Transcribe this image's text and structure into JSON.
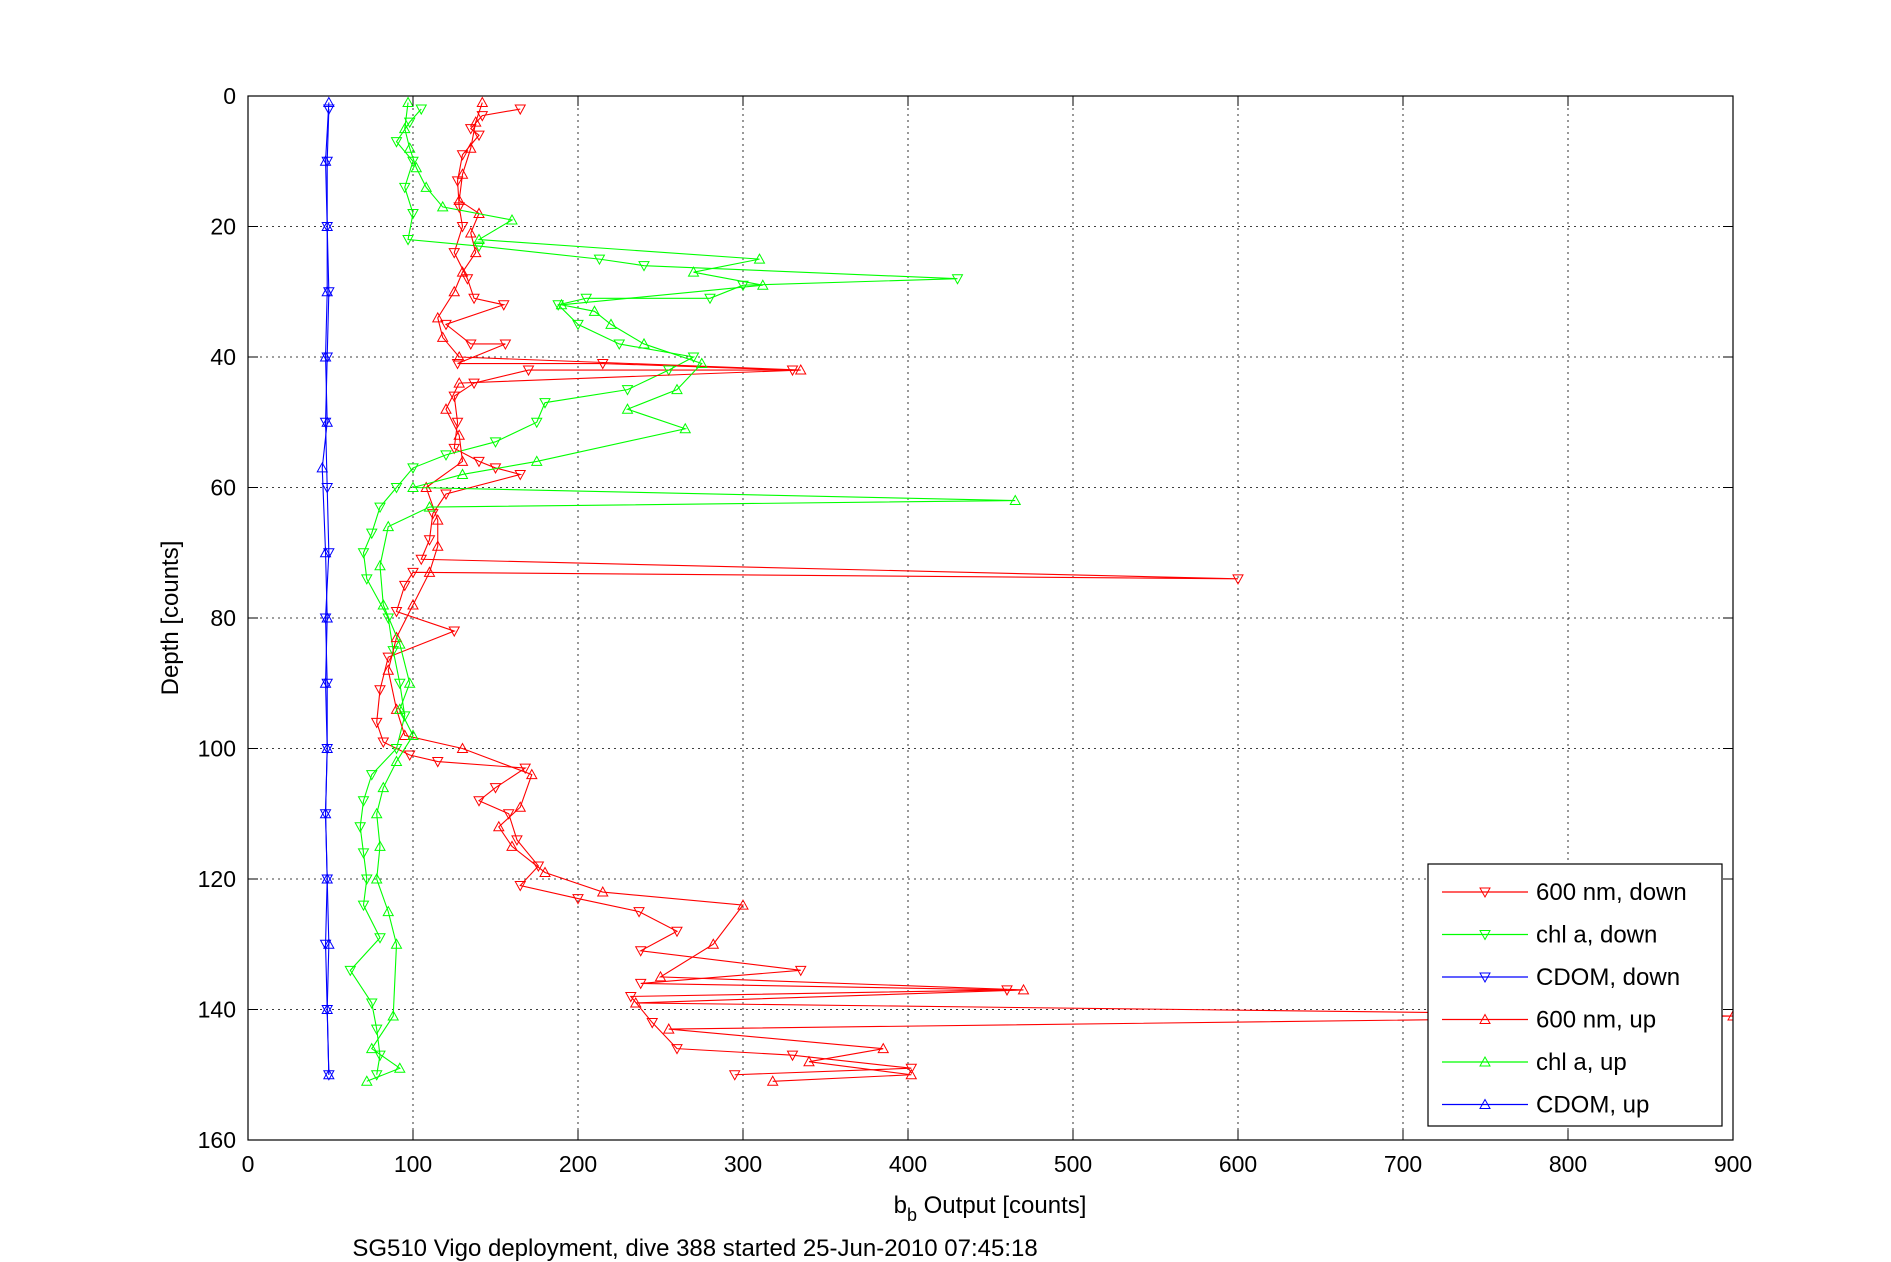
{
  "chart_data": {
    "type": "line",
    "xlabel": "b_b Output [counts]",
    "xlabel_main": "b",
    "xlabel_sub": "b",
    "xlabel_rest": " Output [counts]",
    "ylabel": "Depth [counts]",
    "caption": "SG510 Vigo deployment, dive 388 started 25-Jun-2010 07:45:18",
    "xlim": [
      0,
      900
    ],
    "ylim": [
      0,
      160
    ],
    "y_reversed": true,
    "grid": true,
    "legend_position": "bottom-right",
    "xticks": [
      "0",
      "100",
      "200",
      "300",
      "400",
      "500",
      "600",
      "700",
      "800",
      "900"
    ],
    "yticks": [
      "0",
      "20",
      "40",
      "60",
      "80",
      "100",
      "120",
      "140",
      "160"
    ],
    "series": [
      {
        "name": "600 nm, down",
        "color": "#ff0000",
        "marker": "triangle-down",
        "points": [
          [
            165,
            2
          ],
          [
            142,
            3
          ],
          [
            135,
            5
          ],
          [
            140,
            6
          ],
          [
            130,
            9
          ],
          [
            127,
            13
          ],
          [
            128,
            17
          ],
          [
            130,
            20
          ],
          [
            125,
            24
          ],
          [
            133,
            28
          ],
          [
            137,
            31
          ],
          [
            155,
            32
          ],
          [
            120,
            35
          ],
          [
            135,
            38
          ],
          [
            156,
            38
          ],
          [
            127,
            41
          ],
          [
            215,
            41
          ],
          [
            330,
            42
          ],
          [
            170,
            42
          ],
          [
            137,
            44
          ],
          [
            125,
            46
          ],
          [
            127,
            50
          ],
          [
            125,
            54
          ],
          [
            140,
            56
          ],
          [
            150,
            57
          ],
          [
            165,
            58
          ],
          [
            120,
            61
          ],
          [
            112,
            64
          ],
          [
            110,
            68
          ],
          [
            105,
            71
          ],
          [
            600,
            74
          ],
          [
            100,
            73
          ],
          [
            95,
            75
          ],
          [
            90,
            79
          ],
          [
            125,
            82
          ],
          [
            85,
            86
          ],
          [
            80,
            91
          ],
          [
            78,
            96
          ],
          [
            82,
            99
          ],
          [
            98,
            101
          ],
          [
            115,
            102
          ],
          [
            168,
            103
          ],
          [
            150,
            106
          ],
          [
            140,
            108
          ],
          [
            158,
            110
          ],
          [
            163,
            114
          ],
          [
            176,
            118
          ],
          [
            165,
            121
          ],
          [
            200,
            123
          ],
          [
            237,
            125
          ],
          [
            260,
            128
          ],
          [
            238,
            131
          ],
          [
            335,
            134
          ],
          [
            238,
            136
          ],
          [
            460,
            137
          ],
          [
            232,
            138
          ],
          [
            245,
            142
          ],
          [
            260,
            146
          ],
          [
            330,
            147
          ],
          [
            402,
            149
          ],
          [
            295,
            150
          ]
        ]
      },
      {
        "name": "chl a, down",
        "color": "#00ff00",
        "marker": "triangle-down",
        "points": [
          [
            105,
            2
          ],
          [
            98,
            4
          ],
          [
            90,
            7
          ],
          [
            100,
            10
          ],
          [
            95,
            14
          ],
          [
            100,
            18
          ],
          [
            97,
            22
          ],
          [
            140,
            23
          ],
          [
            213,
            25
          ],
          [
            240,
            26
          ],
          [
            430,
            28
          ],
          [
            300,
            29
          ],
          [
            280,
            31
          ],
          [
            205,
            31
          ],
          [
            188,
            32
          ],
          [
            200,
            35
          ],
          [
            225,
            38
          ],
          [
            270,
            40
          ],
          [
            255,
            42
          ],
          [
            230,
            45
          ],
          [
            180,
            47
          ],
          [
            175,
            50
          ],
          [
            150,
            53
          ],
          [
            120,
            55
          ],
          [
            100,
            57
          ],
          [
            90,
            60
          ],
          [
            80,
            63
          ],
          [
            75,
            67
          ],
          [
            70,
            70
          ],
          [
            72,
            74
          ],
          [
            85,
            80
          ],
          [
            88,
            85
          ],
          [
            92,
            90
          ],
          [
            95,
            95
          ],
          [
            90,
            100
          ],
          [
            75,
            104
          ],
          [
            70,
            108
          ],
          [
            68,
            112
          ],
          [
            70,
            116
          ],
          [
            72,
            120
          ],
          [
            70,
            124
          ],
          [
            80,
            129
          ],
          [
            62,
            134
          ],
          [
            75,
            139
          ],
          [
            78,
            143
          ],
          [
            80,
            147
          ],
          [
            78,
            150
          ]
        ]
      },
      {
        "name": "CDOM, down",
        "color": "#0000ff",
        "marker": "triangle-down",
        "points": [
          [
            49,
            2
          ],
          [
            48,
            10
          ],
          [
            48,
            20
          ],
          [
            49,
            30
          ],
          [
            48,
            40
          ],
          [
            47,
            50
          ],
          [
            48,
            60
          ],
          [
            49,
            70
          ],
          [
            47,
            80
          ],
          [
            48,
            90
          ],
          [
            48,
            100
          ],
          [
            47,
            110
          ],
          [
            48,
            120
          ],
          [
            47,
            130
          ],
          [
            48,
            140
          ],
          [
            49,
            150
          ]
        ]
      },
      {
        "name": "600 nm, up",
        "color": "#ff0000",
        "marker": "triangle-up",
        "points": [
          [
            318,
            151
          ],
          [
            402,
            150
          ],
          [
            340,
            148
          ],
          [
            385,
            146
          ],
          [
            255,
            143
          ],
          [
            900,
            141
          ],
          [
            235,
            139
          ],
          [
            470,
            137
          ],
          [
            250,
            135
          ],
          [
            282,
            130
          ],
          [
            300,
            124
          ],
          [
            215,
            122
          ],
          [
            180,
            119
          ],
          [
            160,
            115
          ],
          [
            152,
            112
          ],
          [
            165,
            109
          ],
          [
            172,
            104
          ],
          [
            130,
            100
          ],
          [
            95,
            98
          ],
          [
            90,
            94
          ],
          [
            85,
            88
          ],
          [
            90,
            83
          ],
          [
            100,
            78
          ],
          [
            110,
            73
          ],
          [
            115,
            69
          ],
          [
            115,
            65
          ],
          [
            108,
            60
          ],
          [
            130,
            56
          ],
          [
            128,
            52
          ],
          [
            120,
            48
          ],
          [
            128,
            44
          ],
          [
            335,
            42
          ],
          [
            128,
            40
          ],
          [
            118,
            37
          ],
          [
            115,
            34
          ],
          [
            125,
            30
          ],
          [
            130,
            27
          ],
          [
            138,
            24
          ],
          [
            135,
            21
          ],
          [
            140,
            18
          ],
          [
            128,
            16
          ],
          [
            130,
            12
          ],
          [
            135,
            8
          ],
          [
            138,
            4
          ],
          [
            142,
            1
          ]
        ]
      },
      {
        "name": "chl a, up",
        "color": "#00ff00",
        "marker": "triangle-up",
        "points": [
          [
            72,
            151
          ],
          [
            92,
            149
          ],
          [
            75,
            146
          ],
          [
            88,
            141
          ],
          [
            90,
            130
          ],
          [
            85,
            125
          ],
          [
            78,
            120
          ],
          [
            80,
            115
          ],
          [
            78,
            110
          ],
          [
            82,
            106
          ],
          [
            90,
            102
          ],
          [
            100,
            98
          ],
          [
            92,
            94
          ],
          [
            98,
            90
          ],
          [
            92,
            84
          ],
          [
            82,
            78
          ],
          [
            80,
            72
          ],
          [
            85,
            66
          ],
          [
            110,
            63
          ],
          [
            465,
            62
          ],
          [
            100,
            60
          ],
          [
            130,
            58
          ],
          [
            175,
            56
          ],
          [
            265,
            51
          ],
          [
            230,
            48
          ],
          [
            260,
            45
          ],
          [
            275,
            41
          ],
          [
            240,
            38
          ],
          [
            220,
            35
          ],
          [
            210,
            33
          ],
          [
            190,
            32
          ],
          [
            312,
            29
          ],
          [
            270,
            27
          ],
          [
            310,
            25
          ],
          [
            140,
            22
          ],
          [
            160,
            19
          ],
          [
            118,
            17
          ],
          [
            108,
            14
          ],
          [
            102,
            11
          ],
          [
            98,
            8
          ],
          [
            95,
            5
          ],
          [
            97,
            1
          ]
        ]
      },
      {
        "name": "CDOM, up",
        "color": "#0000ff",
        "marker": "triangle-up",
        "points": [
          [
            49,
            150
          ],
          [
            48,
            140
          ],
          [
            49,
            130
          ],
          [
            48,
            120
          ],
          [
            47,
            110
          ],
          [
            48,
            100
          ],
          [
            47,
            90
          ],
          [
            48,
            80
          ],
          [
            47,
            70
          ],
          [
            45,
            57
          ],
          [
            48,
            50
          ],
          [
            47,
            40
          ],
          [
            48,
            30
          ],
          [
            48,
            20
          ],
          [
            47,
            10
          ],
          [
            49,
            1
          ]
        ]
      }
    ]
  }
}
